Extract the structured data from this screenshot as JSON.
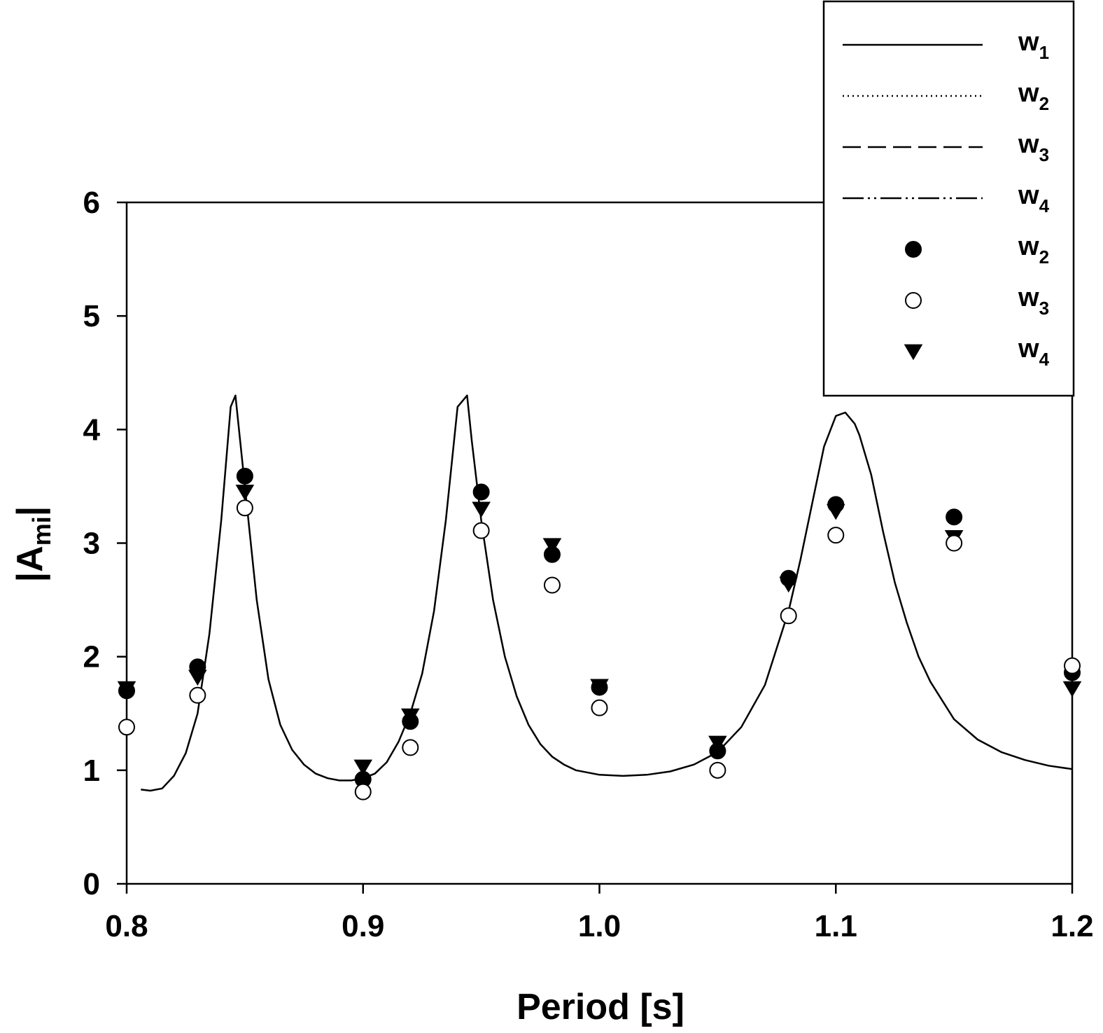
{
  "chart_data": {
    "type": "line",
    "title": "",
    "xlabel": "Period [s]",
    "ylabel": "|A",
    "ylabel_sub": "mi",
    "ylabel_end": "|",
    "xlim": [
      0.8,
      1.2
    ],
    "ylim": [
      0,
      6
    ],
    "x_ticks": [
      0.8,
      0.9,
      1.0,
      1.1,
      1.2
    ],
    "x_tick_labels": [
      "0.8",
      "0.9",
      "1.0",
      "1.1",
      "1.2"
    ],
    "y_ticks": [
      0,
      1,
      2,
      3,
      4,
      5,
      6
    ],
    "y_tick_labels": [
      "0",
      "1",
      "2",
      "3",
      "4",
      "5",
      "6"
    ],
    "grid": false,
    "legend_position": "top-right",
    "legend": [
      {
        "symbol": "solid-line",
        "name": "w",
        "sub": "1"
      },
      {
        "symbol": "dotted-line",
        "name": "w",
        "sub": "2"
      },
      {
        "symbol": "dashed-line",
        "name": "w",
        "sub": "3"
      },
      {
        "symbol": "dash-dot-dot-line",
        "name": "w",
        "sub": "4"
      },
      {
        "symbol": "filled-circle",
        "name": "w",
        "sub": "2"
      },
      {
        "symbol": "open-circle",
        "name": "w",
        "sub": "3"
      },
      {
        "symbol": "filled-triangle-down",
        "name": "w",
        "sub": "4"
      }
    ],
    "line_series": {
      "name": "w1",
      "x": [
        0.806,
        0.81,
        0.815,
        0.82,
        0.825,
        0.83,
        0.835,
        0.84,
        0.844,
        0.846,
        0.85,
        0.855,
        0.86,
        0.865,
        0.87,
        0.875,
        0.88,
        0.885,
        0.89,
        0.895,
        0.9,
        0.905,
        0.91,
        0.915,
        0.92,
        0.925,
        0.93,
        0.935,
        0.94,
        0.944,
        0.946,
        0.95,
        0.955,
        0.96,
        0.965,
        0.97,
        0.975,
        0.98,
        0.985,
        0.99,
        1.0,
        1.01,
        1.02,
        1.03,
        1.04,
        1.05,
        1.06,
        1.07,
        1.08,
        1.085,
        1.09,
        1.095,
        1.1,
        1.104,
        1.108,
        1.11,
        1.115,
        1.12,
        1.125,
        1.13,
        1.135,
        1.14,
        1.15,
        1.16,
        1.17,
        1.18,
        1.19,
        1.2
      ],
      "y": [
        0.83,
        0.82,
        0.84,
        0.95,
        1.15,
        1.5,
        2.2,
        3.2,
        4.2,
        4.3,
        3.5,
        2.5,
        1.8,
        1.4,
        1.18,
        1.05,
        0.97,
        0.93,
        0.91,
        0.91,
        0.93,
        0.97,
        1.07,
        1.25,
        1.5,
        1.85,
        2.4,
        3.2,
        4.2,
        4.3,
        3.9,
        3.2,
        2.5,
        2.0,
        1.65,
        1.4,
        1.23,
        1.12,
        1.05,
        1.0,
        0.96,
        0.95,
        0.96,
        0.99,
        1.05,
        1.16,
        1.38,
        1.75,
        2.4,
        2.85,
        3.35,
        3.85,
        4.12,
        4.15,
        4.05,
        3.95,
        3.6,
        3.1,
        2.65,
        2.3,
        2.0,
        1.78,
        1.45,
        1.27,
        1.16,
        1.09,
        1.04,
        1.01
      ]
    },
    "series": [
      {
        "name": "w2",
        "marker": "filled-circle",
        "x": [
          0.8,
          0.83,
          0.85,
          0.9,
          0.92,
          0.95,
          0.98,
          1.0,
          1.05,
          1.08,
          1.1,
          1.15,
          1.2
        ],
        "values": [
          1.7,
          1.91,
          3.59,
          0.92,
          1.43,
          3.45,
          2.9,
          1.73,
          1.17,
          2.69,
          3.34,
          3.23,
          1.86
        ]
      },
      {
        "name": "w3",
        "marker": "open-circle",
        "x": [
          0.8,
          0.83,
          0.85,
          0.9,
          0.92,
          0.95,
          0.98,
          1.0,
          1.05,
          1.08,
          1.1,
          1.15,
          1.2
        ],
        "values": [
          1.38,
          1.66,
          3.31,
          0.81,
          1.2,
          3.11,
          2.63,
          1.55,
          1.0,
          2.36,
          3.07,
          3.0,
          1.92
        ]
      },
      {
        "name": "w4",
        "marker": "filled-triangle-down",
        "x": [
          0.8,
          0.83,
          0.85,
          0.9,
          0.92,
          0.95,
          0.98,
          1.0,
          1.05,
          1.08,
          1.1,
          1.15,
          1.2
        ],
        "values": [
          1.72,
          1.82,
          3.45,
          1.03,
          1.48,
          3.3,
          2.98,
          1.74,
          1.24,
          2.64,
          3.28,
          3.05,
          1.72
        ]
      }
    ]
  }
}
